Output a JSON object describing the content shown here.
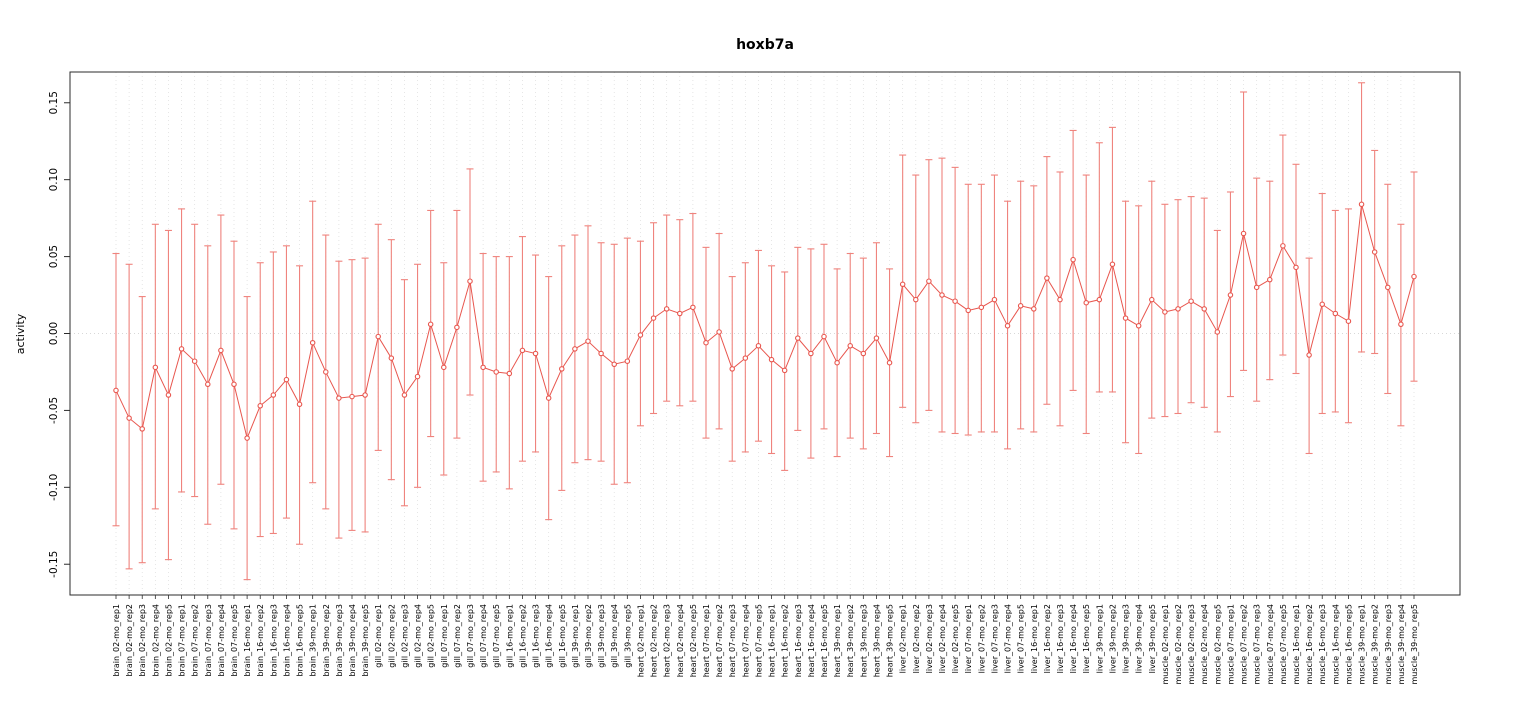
{
  "chart_data": {
    "type": "scatter",
    "title": "hoxb7a",
    "ylabel": "activity",
    "xlabel": "",
    "ylim": [
      -0.17,
      0.17
    ],
    "ytick_values": [
      -0.15,
      -0.1,
      -0.05,
      0.0,
      0.05,
      0.1,
      0.15
    ],
    "ytick_labels": [
      "-0.15",
      "-0.10",
      "-0.05",
      "0.00",
      "0.05",
      "0.10",
      "0.15"
    ],
    "grid": "vertical-dotted-per-category-plus-dotted-zero-line",
    "legend": "none",
    "series_color": "#e8564e",
    "error_color": "#ef837d",
    "categories": [
      "brain_02-mo_rep1",
      "brain_02-mo_rep2",
      "brain_02-mo_rep3",
      "brain_02-mo_rep4",
      "brain_02-mo_rep5",
      "brain_07-mo_rep1",
      "brain_07-mo_rep2",
      "brain_07-mo_rep3",
      "brain_07-mo_rep4",
      "brain_07-mo_rep5",
      "brain_16-mo_rep1",
      "brain_16-mo_rep2",
      "brain_16-mo_rep3",
      "brain_16-mo_rep4",
      "brain_16-mo_rep5",
      "brain_39-mo_rep1",
      "brain_39-mo_rep2",
      "brain_39-mo_rep3",
      "brain_39-mo_rep4",
      "brain_39-mo_rep5",
      "gill_02-mo_rep1",
      "gill_02-mo_rep2",
      "gill_02-mo_rep3",
      "gill_02-mo_rep4",
      "gill_02-mo_rep5",
      "gill_07-mo_rep1",
      "gill_07-mo_rep2",
      "gill_07-mo_rep3",
      "gill_07-mo_rep4",
      "gill_07-mo_rep5",
      "gill_16-mo_rep1",
      "gill_16-mo_rep2",
      "gill_16-mo_rep3",
      "gill_16-mo_rep4",
      "gill_16-mo_rep5",
      "gill_39-mo_rep1",
      "gill_39-mo_rep2",
      "gill_39-mo_rep3",
      "gill_39-mo_rep4",
      "gill_39-mo_rep5",
      "heart_02-mo_rep1",
      "heart_02-mo_rep2",
      "heart_02-mo_rep3",
      "heart_02-mo_rep4",
      "heart_02-mo_rep5",
      "heart_07-mo_rep1",
      "heart_07-mo_rep2",
      "heart_07-mo_rep3",
      "heart_07-mo_rep4",
      "heart_07-mo_rep5",
      "heart_16-mo_rep1",
      "heart_16-mo_rep2",
      "heart_16-mo_rep3",
      "heart_16-mo_rep4",
      "heart_16-mo_rep5",
      "heart_39-mo_rep1",
      "heart_39-mo_rep2",
      "heart_39-mo_rep3",
      "heart_39-mo_rep4",
      "heart_39-mo_rep5",
      "liver_02-mo_rep1",
      "liver_02-mo_rep2",
      "liver_02-mo_rep3",
      "liver_02-mo_rep4",
      "liver_02-mo_rep5",
      "liver_07-mo_rep1",
      "liver_07-mo_rep2",
      "liver_07-mo_rep3",
      "liver_07-mo_rep4",
      "liver_07-mo_rep5",
      "liver_16-mo_rep1",
      "liver_16-mo_rep2",
      "liver_16-mo_rep3",
      "liver_16-mo_rep4",
      "liver_16-mo_rep5",
      "liver_39-mo_rep1",
      "liver_39-mo_rep2",
      "liver_39-mo_rep3",
      "liver_39-mo_rep4",
      "liver_39-mo_rep5",
      "muscle_02-mo_rep1",
      "muscle_02-mo_rep2",
      "muscle_02-mo_rep3",
      "muscle_02-mo_rep4",
      "muscle_02-mo_rep5",
      "muscle_07-mo_rep1",
      "muscle_07-mo_rep2",
      "muscle_07-mo_rep3",
      "muscle_07-mo_rep4",
      "muscle_07-mo_rep5",
      "muscle_16-mo_rep1",
      "muscle_16-mo_rep2",
      "muscle_16-mo_rep3",
      "muscle_16-mo_rep4",
      "muscle_16-mo_rep5",
      "muscle_39-mo_rep1",
      "muscle_39-mo_rep2",
      "muscle_39-mo_rep3",
      "muscle_39-mo_rep4",
      "muscle_39-mo_rep5"
    ],
    "series": [
      {
        "name": "activity",
        "values": [
          -0.037,
          -0.055,
          -0.062,
          -0.022,
          -0.04,
          -0.01,
          -0.018,
          -0.033,
          -0.011,
          -0.033,
          -0.068,
          -0.047,
          -0.04,
          -0.03,
          -0.046,
          -0.006,
          -0.025,
          -0.042,
          -0.041,
          -0.04,
          -0.002,
          -0.016,
          -0.04,
          -0.028,
          0.006,
          -0.022,
          0.004,
          0.034,
          -0.022,
          -0.025,
          -0.026,
          -0.011,
          -0.013,
          -0.042,
          -0.023,
          -0.01,
          -0.005,
          -0.013,
          -0.02,
          -0.018,
          -0.001,
          0.01,
          0.016,
          0.013,
          0.017,
          -0.006,
          0.001,
          -0.023,
          -0.016,
          -0.008,
          -0.017,
          -0.024,
          -0.003,
          -0.013,
          -0.002,
          -0.019,
          -0.008,
          -0.013,
          -0.003,
          -0.019,
          0.032,
          0.022,
          0.034,
          0.025,
          0.021,
          0.015,
          0.017,
          0.022,
          0.005,
          0.018,
          0.016,
          0.036,
          0.022,
          0.048,
          0.02,
          0.022,
          0.045,
          0.01,
          0.005,
          0.022,
          0.014,
          0.016,
          0.021,
          0.016,
          0.001,
          0.025,
          0.065,
          0.03,
          0.035,
          0.057,
          0.043,
          -0.014,
          0.019,
          0.013,
          0.008,
          0.084,
          0.053,
          0.03,
          0.006,
          0.037
        ],
        "lower": [
          -0.125,
          -0.153,
          -0.149,
          -0.114,
          -0.147,
          -0.103,
          -0.106,
          -0.124,
          -0.098,
          -0.127,
          -0.16,
          -0.132,
          -0.13,
          -0.12,
          -0.137,
          -0.097,
          -0.114,
          -0.133,
          -0.128,
          -0.129,
          -0.076,
          -0.095,
          -0.112,
          -0.1,
          -0.067,
          -0.092,
          -0.068,
          -0.04,
          -0.096,
          -0.09,
          -0.101,
          -0.083,
          -0.077,
          -0.121,
          -0.102,
          -0.084,
          -0.082,
          -0.083,
          -0.098,
          -0.097,
          -0.06,
          -0.052,
          -0.044,
          -0.047,
          -0.044,
          -0.068,
          -0.062,
          -0.083,
          -0.077,
          -0.07,
          -0.078,
          -0.089,
          -0.063,
          -0.081,
          -0.062,
          -0.08,
          -0.068,
          -0.075,
          -0.065,
          -0.08,
          -0.048,
          -0.058,
          -0.05,
          -0.064,
          -0.065,
          -0.066,
          -0.064,
          -0.064,
          -0.075,
          -0.062,
          -0.064,
          -0.046,
          -0.06,
          -0.037,
          -0.065,
          -0.038,
          -0.038,
          -0.071,
          -0.078,
          -0.055,
          -0.054,
          -0.052,
          -0.045,
          -0.048,
          -0.064,
          -0.041,
          -0.024,
          -0.044,
          -0.03,
          -0.014,
          -0.026,
          -0.078,
          -0.052,
          -0.051,
          -0.058,
          -0.012,
          -0.013,
          -0.039,
          -0.06,
          -0.031
        ],
        "upper": [
          0.052,
          0.045,
          0.024,
          0.071,
          0.067,
          0.081,
          0.071,
          0.057,
          0.077,
          0.06,
          0.024,
          0.046,
          0.053,
          0.057,
          0.044,
          0.086,
          0.064,
          0.047,
          0.048,
          0.049,
          0.071,
          0.061,
          0.035,
          0.045,
          0.08,
          0.046,
          0.08,
          0.107,
          0.052,
          0.05,
          0.05,
          0.063,
          0.051,
          0.037,
          0.057,
          0.064,
          0.07,
          0.059,
          0.058,
          0.062,
          0.06,
          0.072,
          0.077,
          0.074,
          0.078,
          0.056,
          0.065,
          0.037,
          0.046,
          0.054,
          0.044,
          0.04,
          0.056,
          0.055,
          0.058,
          0.042,
          0.052,
          0.049,
          0.059,
          0.042,
          0.116,
          0.103,
          0.113,
          0.114,
          0.108,
          0.097,
          0.097,
          0.103,
          0.086,
          0.099,
          0.096,
          0.115,
          0.105,
          0.132,
          0.103,
          0.124,
          0.134,
          0.086,
          0.083,
          0.099,
          0.084,
          0.087,
          0.089,
          0.088,
          0.067,
          0.092,
          0.157,
          0.101,
          0.099,
          0.129,
          0.11,
          0.049,
          0.091,
          0.08,
          0.081,
          0.163,
          0.119,
          0.097,
          0.071,
          0.105
        ]
      }
    ]
  }
}
